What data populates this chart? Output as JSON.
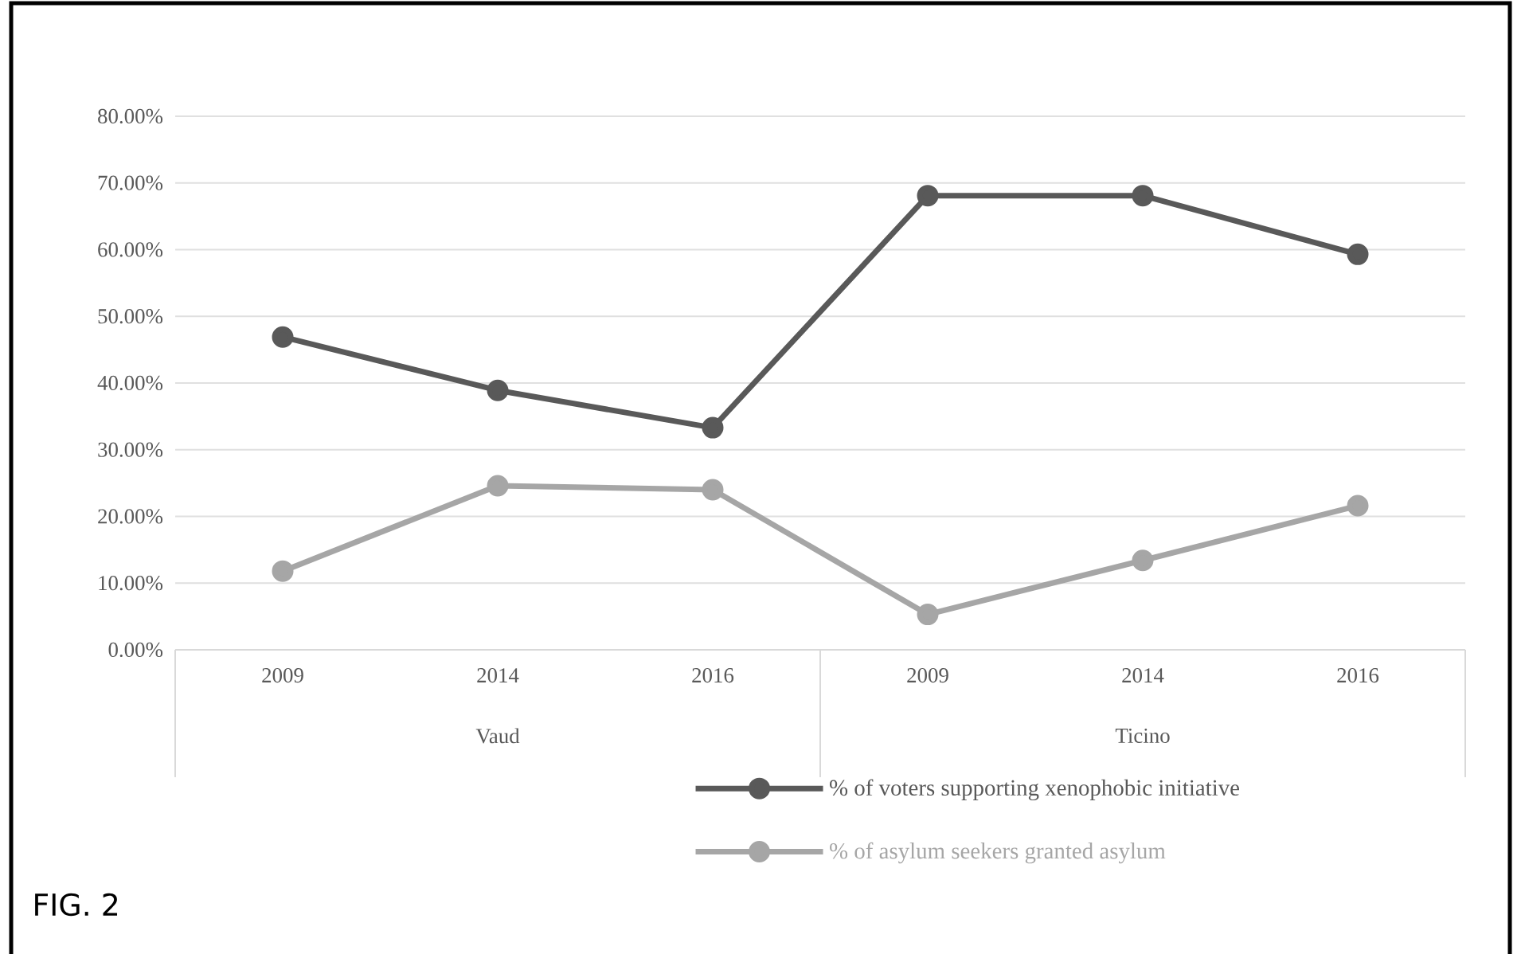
{
  "chart_data": {
    "type": "line",
    "categories": [
      "2009",
      "2014",
      "2016",
      "2009",
      "2014",
      "2016"
    ],
    "series": [
      {
        "name": "% of voters supporting xenophobic initiative",
        "color": "#595959",
        "values": [
          46.9,
          38.9,
          33.3,
          68.1,
          68.1,
          59.3
        ]
      },
      {
        "name": "% of asylum seekers granted asylum",
        "color": "#a6a6a6",
        "values": [
          11.8,
          24.6,
          24.0,
          5.3,
          13.4,
          21.6
        ]
      }
    ],
    "ylim": [
      0,
      80
    ],
    "yticks": [
      {
        "value": 0,
        "label": "0.00%"
      },
      {
        "value": 10,
        "label": "10.00%"
      },
      {
        "value": 20,
        "label": "20.00%"
      },
      {
        "value": 30,
        "label": "30.00%"
      },
      {
        "value": 40,
        "label": "40.00%"
      },
      {
        "value": 50,
        "label": "50.00%"
      },
      {
        "value": 60,
        "label": "60.00%"
      },
      {
        "value": 70,
        "label": "70.00%"
      },
      {
        "value": 80,
        "label": "80.00%"
      }
    ],
    "annotations": [
      "Vaud",
      "Ticino",
      "FIG. 2"
    ],
    "grid": "y",
    "legend": "bottom",
    "marker": "circle",
    "line_style": "solid"
  }
}
